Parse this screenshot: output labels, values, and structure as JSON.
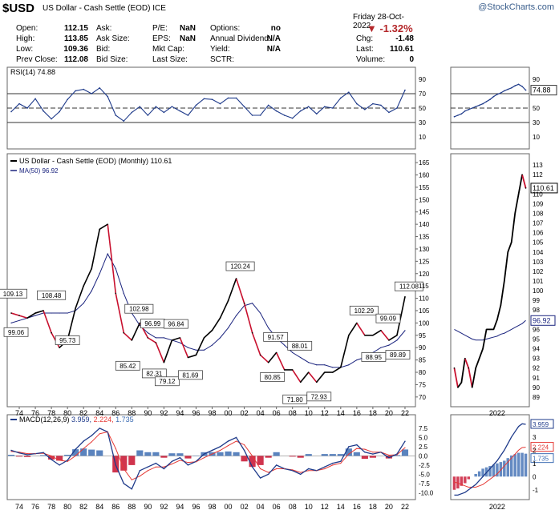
{
  "header": {
    "ticker": "$USD",
    "name": "US Dollar - Cash Settle (EOD)",
    "exchange": "ICE",
    "watermark": "@StockCharts.com"
  },
  "quote": {
    "date": "Friday   28-Oct-2022",
    "pct_change": "-1.32%",
    "col1": [
      {
        "label": "Open:",
        "value": "112.15"
      },
      {
        "label": "High:",
        "value": "113.85"
      },
      {
        "label": "Low:",
        "value": "109.36"
      },
      {
        "label": "Prev Close:",
        "value": "112.08"
      }
    ],
    "col2": [
      {
        "label": "Ask:",
        "value": ""
      },
      {
        "label": "Ask Size:",
        "value": ""
      },
      {
        "label": "Bid:",
        "value": ""
      },
      {
        "label": "Bid Size:",
        "value": ""
      }
    ],
    "col3": [
      {
        "label": "P/E:",
        "value": "NaN"
      },
      {
        "label": "EPS:",
        "value": "NaN"
      },
      {
        "label": "Mkt Cap:",
        "value": ""
      },
      {
        "label": "Last Size:",
        "value": ""
      }
    ],
    "col4": [
      {
        "label": "Options:",
        "value": "no"
      },
      {
        "label": "Annual Dividend:",
        "value": "N/A"
      },
      {
        "label": "Yield:",
        "value": "N/A"
      },
      {
        "label": "SCTR:",
        "value": ""
      }
    ],
    "col5": [
      {
        "label": "Chg:",
        "value": "-1.48"
      },
      {
        "label": "Last:",
        "value": "110.61"
      },
      {
        "label": "Volume:",
        "value": "0"
      }
    ]
  },
  "colors": {
    "price_up": "#000000",
    "price_down": "#c8102e",
    "ma": "#1a237e",
    "rsi": "#1e3a8a",
    "macd_line": "#1e3a8a",
    "signal_line": "#e53935",
    "hist": "#3d6db3"
  },
  "chart_data": [
    {
      "type": "line",
      "panel": "rsi",
      "title": "RSI(14) 74.88",
      "current": "74.88",
      "ylim": [
        0,
        100
      ],
      "yticks": [
        10,
        30,
        50,
        70,
        90
      ],
      "ref_lines": [
        30,
        50,
        70
      ],
      "x": [
        1973,
        1974,
        1975,
        1976,
        1977,
        1978,
        1979,
        1980,
        1981,
        1982,
        1983,
        1984,
        1985,
        1986,
        1987,
        1988,
        1989,
        1990,
        1991,
        1992,
        1993,
        1994,
        1995,
        1996,
        1997,
        1998,
        1999,
        2000,
        2001,
        2002,
        2003,
        2004,
        2005,
        2006,
        2007,
        2008,
        2009,
        2010,
        2011,
        2012,
        2013,
        2014,
        2015,
        2016,
        2017,
        2018,
        2019,
        2020,
        2021,
        2022
      ],
      "values": [
        45,
        56,
        50,
        63,
        46,
        35,
        45,
        62,
        74,
        76,
        70,
        78,
        66,
        40,
        32,
        44,
        52,
        40,
        52,
        44,
        52,
        46,
        40,
        54,
        63,
        62,
        56,
        64,
        64,
        52,
        40,
        40,
        54,
        46,
        40,
        36,
        46,
        52,
        42,
        52,
        50,
        64,
        72,
        56,
        48,
        56,
        54,
        44,
        50,
        74.88
      ]
    },
    {
      "type": "line",
      "panel": "price",
      "title": "US Dollar - Cash Settle (EOD) (Monthly) 110.61",
      "ma_label": "MA(50) 96.92",
      "last_value": "110.61",
      "ma_last": "96.92",
      "ylim": [
        68,
        166
      ],
      "yticks": [
        70,
        75,
        80,
        85,
        90,
        95,
        100,
        105,
        110,
        115,
        120,
        125,
        130,
        135,
        140,
        145,
        150,
        155,
        160,
        165
      ],
      "xtick_labels": [
        "74",
        "76",
        "78",
        "80",
        "82",
        "84",
        "86",
        "88",
        "90",
        "92",
        "94",
        "96",
        "98",
        "00",
        "02",
        "04",
        "06",
        "08",
        "10",
        "12",
        "14",
        "16",
        "18",
        "20",
        "22"
      ],
      "x": [
        1973,
        1974,
        1975,
        1976,
        1977,
        1978,
        1979,
        1980,
        1981,
        1982,
        1983,
        1984,
        1985,
        1986,
        1987,
        1988,
        1989,
        1990,
        1991,
        1992,
        1993,
        1994,
        1995,
        1996,
        1997,
        1998,
        1999,
        2000,
        2001,
        2002,
        2003,
        2004,
        2005,
        2006,
        2007,
        2008,
        2009,
        2010,
        2011,
        2012,
        2013,
        2014,
        2015,
        2016,
        2017,
        2018,
        2019,
        2020,
        2021,
        2022
      ],
      "values": [
        104,
        103,
        102,
        104,
        105,
        96,
        90,
        93,
        106,
        115,
        122,
        138,
        140,
        112,
        96,
        93,
        100,
        94,
        92,
        84,
        93,
        94,
        86,
        87,
        94,
        97,
        102,
        109,
        118,
        108,
        96,
        87,
        84,
        88,
        81,
        81,
        76,
        80,
        76,
        80,
        80,
        82,
        95,
        100,
        95,
        95,
        97,
        93,
        95,
        110.61
      ],
      "ma_values": [
        100,
        101,
        102,
        103,
        104,
        104,
        104,
        104,
        105,
        108,
        113,
        120,
        128,
        122,
        112,
        104,
        99,
        96,
        94,
        94,
        93,
        92,
        90,
        89,
        89,
        91,
        94,
        98,
        103,
        107,
        108,
        104,
        98,
        94,
        91,
        88,
        86,
        84,
        83,
        83,
        82,
        82,
        83,
        85,
        86,
        88,
        90,
        91,
        93,
        96.92
      ],
      "annotations": [
        {
          "label": "109.13",
          "x": 1973.2,
          "y": 109.13,
          "pos": "above"
        },
        {
          "label": "99.06",
          "x": 1973.6,
          "y": 99.06,
          "pos": "below"
        },
        {
          "label": "108.48",
          "x": 1978.0,
          "y": 108.48,
          "pos": "above"
        },
        {
          "label": "95.73",
          "x": 1980.0,
          "y": 95.73,
          "pos": "below"
        },
        {
          "label": "85.42",
          "x": 1987.5,
          "y": 85.42,
          "pos": "below"
        },
        {
          "label": "102.98",
          "x": 1988.9,
          "y": 102.98,
          "pos": "above"
        },
        {
          "label": "96.99",
          "x": 1990.6,
          "y": 96.99,
          "pos": "above"
        },
        {
          "label": "96.84",
          "x": 1993.5,
          "y": 96.84,
          "pos": "above"
        },
        {
          "label": "82.31",
          "x": 1990.8,
          "y": 82.31,
          "pos": "below"
        },
        {
          "label": "79.12",
          "x": 1992.4,
          "y": 79.12,
          "pos": "below"
        },
        {
          "label": "81.69",
          "x": 1995.3,
          "y": 81.69,
          "pos": "below"
        },
        {
          "label": "120.24",
          "x": 2001.5,
          "y": 120.24,
          "pos": "above"
        },
        {
          "label": "91.57",
          "x": 2005.9,
          "y": 91.57,
          "pos": "above"
        },
        {
          "label": "80.85",
          "x": 2005.5,
          "y": 80.85,
          "pos": "below"
        },
        {
          "label": "88.01",
          "x": 2008.9,
          "y": 88.01,
          "pos": "above"
        },
        {
          "label": "71.80",
          "x": 2008.3,
          "y": 71.8,
          "pos": "below"
        },
        {
          "label": "72.93",
          "x": 2011.3,
          "y": 72.93,
          "pos": "below"
        },
        {
          "label": "102.29",
          "x": 2016.9,
          "y": 102.29,
          "pos": "above"
        },
        {
          "label": "88.95",
          "x": 2018.1,
          "y": 88.95,
          "pos": "below"
        },
        {
          "label": "99.09",
          "x": 2019.9,
          "y": 99.09,
          "pos": "above"
        },
        {
          "label": "89.89",
          "x": 2021.1,
          "y": 89.89,
          "pos": "below"
        },
        {
          "label": "112.08",
          "x": 2022.5,
          "y": 112.08,
          "pos": "above"
        }
      ]
    },
    {
      "type": "bar",
      "panel": "macd",
      "title": "MACD(12,26,9) 3.959, 2.224, 1.735",
      "title_parts": {
        "prefix": "MACD(12,26,9)",
        "macd": "3.959,",
        "signal": "2.224,",
        "hist": "1.735"
      },
      "ylim": [
        -11,
        9
      ],
      "yticks": [
        -10.0,
        -7.5,
        -5.0,
        -2.5,
        0.0,
        2.5,
        5.0,
        7.5
      ],
      "x": [
        1973,
        1974,
        1975,
        1976,
        1977,
        1978,
        1979,
        1980,
        1981,
        1982,
        1983,
        1984,
        1985,
        1986,
        1987,
        1988,
        1989,
        1990,
        1991,
        1992,
        1993,
        1994,
        1995,
        1996,
        1997,
        1998,
        1999,
        2000,
        2001,
        2002,
        2003,
        2004,
        2005,
        2006,
        2007,
        2008,
        2009,
        2010,
        2011,
        2012,
        2013,
        2014,
        2015,
        2016,
        2017,
        2018,
        2019,
        2020,
        2021,
        2022
      ],
      "series": [
        {
          "role": "macd",
          "values": [
            1.5,
            0.8,
            0.3,
            0.6,
            0.9,
            -1.0,
            -2.5,
            -1.2,
            1.8,
            4.0,
            5.5,
            7.5,
            6.5,
            -2.5,
            -7.5,
            -9.0,
            -4.0,
            -3.0,
            -2.0,
            -3.5,
            -1.5,
            -0.5,
            -2.5,
            -1.5,
            0.5,
            1.5,
            2.5,
            4.0,
            5.0,
            1.5,
            -3.0,
            -6.0,
            -5.0,
            -2.5,
            -3.5,
            -4.0,
            -5.0,
            -3.5,
            -4.0,
            -3.0,
            -2.0,
            -1.5,
            2.5,
            3.0,
            1.0,
            0.5,
            1.0,
            -0.5,
            0.5,
            3.959
          ]
        },
        {
          "role": "signal",
          "values": [
            1.2,
            1.0,
            0.6,
            0.6,
            0.7,
            0.0,
            -1.2,
            -1.5,
            0.0,
            2.0,
            3.8,
            6.0,
            6.5,
            2.0,
            -3.5,
            -6.5,
            -5.5,
            -4.0,
            -3.0,
            -3.0,
            -2.2,
            -1.2,
            -1.8,
            -1.6,
            -0.5,
            0.5,
            1.5,
            2.8,
            4.0,
            3.0,
            0.0,
            -3.5,
            -4.5,
            -3.5,
            -3.5,
            -3.8,
            -4.5,
            -4.0,
            -4.0,
            -3.5,
            -2.5,
            -2.0,
            0.5,
            2.0,
            1.8,
            1.0,
            1.0,
            0.2,
            0.3,
            2.224
          ]
        },
        {
          "role": "hist",
          "values": [
            0.3,
            -0.2,
            -0.3,
            0.0,
            0.2,
            -1.0,
            -1.3,
            0.3,
            1.8,
            2.0,
            1.7,
            1.5,
            0.0,
            -4.5,
            -4.0,
            -2.5,
            1.5,
            1.0,
            1.0,
            -0.5,
            0.7,
            0.7,
            -0.7,
            0.1,
            1.0,
            1.0,
            1.0,
            1.2,
            1.0,
            -1.5,
            -3.0,
            -2.5,
            -0.5,
            1.0,
            0.0,
            -0.2,
            -0.5,
            0.5,
            0.0,
            0.5,
            0.5,
            0.5,
            2.0,
            1.0,
            -0.8,
            -0.5,
            0.0,
            -0.7,
            0.2,
            1.735
          ]
        }
      ]
    },
    {
      "type": "line",
      "panel": "rsi-zoom",
      "current": "74.88",
      "ylim": [
        0,
        100
      ],
      "x": [
        2020.8,
        2020.9,
        2021.0,
        2021.1,
        2021.2,
        2021.3,
        2021.4,
        2021.5,
        2021.6,
        2021.7,
        2021.8,
        2021.9,
        2022.0,
        2022.1,
        2022.2,
        2022.3,
        2022.4,
        2022.5,
        2022.6,
        2022.7,
        2022.8
      ],
      "values": [
        38,
        40,
        42,
        46,
        48,
        50,
        52,
        54,
        56,
        59,
        62,
        66,
        69,
        71,
        74,
        76,
        78,
        81,
        83,
        80,
        74.88
      ]
    },
    {
      "type": "line",
      "panel": "price-zoom",
      "last_value": "110.61",
      "ma_last": "96.92",
      "ylim": [
        88.5,
        113.5
      ],
      "yticks": [
        89,
        90,
        91,
        92,
        93,
        94,
        95,
        96,
        97,
        98,
        99,
        100,
        101,
        102,
        103,
        104,
        105,
        106,
        107,
        108,
        109,
        110,
        111,
        112,
        113
      ],
      "xtick_labels": [
        "2022"
      ],
      "x": [
        2020.8,
        2020.9,
        2021.0,
        2021.1,
        2021.2,
        2021.3,
        2021.4,
        2021.5,
        2021.6,
        2021.7,
        2021.8,
        2021.9,
        2022.0,
        2022.1,
        2022.2,
        2022.3,
        2022.4,
        2022.5,
        2022.6,
        2022.7,
        2022.8
      ],
      "values": [
        92,
        90,
        90.5,
        93,
        92,
        90,
        92,
        93,
        94,
        96,
        96,
        96,
        97,
        98.5,
        101,
        104,
        105,
        108,
        110,
        112,
        110.61
      ],
      "ma_values": [
        96,
        95.8,
        95.6,
        95.4,
        95.2,
        95.0,
        94.9,
        94.9,
        94.9,
        95.0,
        95.1,
        95.2,
        95.3,
        95.5,
        95.6,
        95.8,
        96.0,
        96.2,
        96.4,
        96.6,
        96.92
      ]
    },
    {
      "type": "bar",
      "panel": "macd-zoom",
      "ylim": [
        -1.5,
        4.2
      ],
      "yticks": [
        -1,
        0,
        1,
        2,
        3
      ],
      "xtick_labels": [
        "2022"
      ],
      "macd_label": "3.959",
      "signal_label": "2.224",
      "hist_label": "1.735",
      "x": [
        2020.8,
        2020.9,
        2021.0,
        2021.1,
        2021.2,
        2021.3,
        2021.4,
        2021.5,
        2021.6,
        2021.7,
        2021.8,
        2021.9,
        2022.0,
        2022.1,
        2022.2,
        2022.3,
        2022.4,
        2022.5,
        2022.6,
        2022.7,
        2022.8
      ],
      "series": [
        {
          "role": "macd",
          "values": [
            -1.4,
            -1.4,
            -1.3,
            -1.2,
            -1.0,
            -0.8,
            -0.6,
            -0.3,
            0.0,
            0.3,
            0.6,
            0.9,
            1.2,
            1.6,
            2.0,
            2.5,
            3.0,
            3.4,
            3.8,
            4.0,
            3.959
          ]
        },
        {
          "role": "signal",
          "values": [
            -0.4,
            -0.5,
            -0.6,
            -0.7,
            -0.8,
            -0.8,
            -0.8,
            -0.7,
            -0.6,
            -0.4,
            -0.2,
            0.0,
            0.2,
            0.5,
            0.8,
            1.1,
            1.4,
            1.7,
            2.0,
            2.2,
            2.224
          ]
        },
        {
          "role": "hist",
          "values": [
            -1.0,
            -0.9,
            -0.7,
            -0.5,
            -0.2,
            0.0,
            0.2,
            0.4,
            0.6,
            0.7,
            0.8,
            0.9,
            1.0,
            1.1,
            1.2,
            1.4,
            1.6,
            1.7,
            1.8,
            1.8,
            1.735
          ]
        }
      ]
    }
  ]
}
